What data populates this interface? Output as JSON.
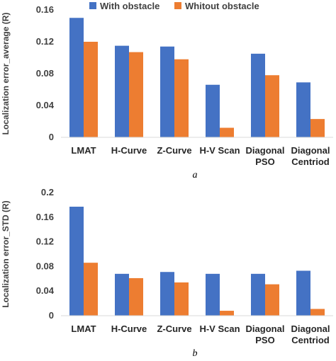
{
  "legend": {
    "items": [
      "With obstacle",
      "Whitout obstacle"
    ]
  },
  "colors": {
    "with": "#4472C4",
    "without": "#ED7D31"
  },
  "chart_data": [
    {
      "type": "bar",
      "caption": "a",
      "ylabel": "Localization error_average (R)",
      "categories": [
        [
          "LMAT"
        ],
        [
          "H-Curve"
        ],
        [
          "Z-Curve"
        ],
        [
          "H-V Scan"
        ],
        [
          "Diagonal",
          "PSO"
        ],
        [
          "Diagonal",
          "Centriod"
        ]
      ],
      "yticks": [
        "0",
        "0.04",
        "0.08",
        "0.12",
        "0.16"
      ],
      "ylim": [
        0,
        0.16
      ],
      "legend_position": "top",
      "grid": false,
      "series": [
        {
          "name": "With obstacle",
          "values": [
            0.15,
            0.115,
            0.114,
            0.066,
            0.105,
            0.069
          ]
        },
        {
          "name": "Whitout obstacle",
          "values": [
            0.12,
            0.107,
            0.098,
            0.012,
            0.078,
            0.023
          ]
        }
      ]
    },
    {
      "type": "bar",
      "caption": "b",
      "ylabel": "Localization error_STD (R)",
      "categories": [
        [
          "LMAT"
        ],
        [
          "H-Curve"
        ],
        [
          "Z-Curve"
        ],
        [
          "H-V Scan"
        ],
        [
          "Diagonal",
          "PSO"
        ],
        [
          "Diagonal",
          "Centriod"
        ]
      ],
      "yticks": [
        "0",
        "0.04",
        "0.08",
        "0.12",
        "0.16",
        "0.2"
      ],
      "ylim": [
        0,
        0.2
      ],
      "grid": false,
      "series": [
        {
          "name": "With obstacle",
          "values": [
            0.177,
            0.068,
            0.071,
            0.068,
            0.068,
            0.073
          ]
        },
        {
          "name": "Whitout obstacle",
          "values": [
            0.086,
            0.061,
            0.054,
            0.008,
            0.051,
            0.011
          ]
        }
      ]
    }
  ]
}
